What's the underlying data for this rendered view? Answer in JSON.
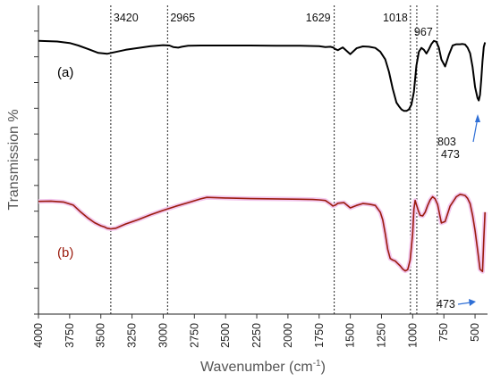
{
  "chart_data": {
    "type": "line",
    "xlabel": "Wavenumber (cm",
    "xlabel_sup": "-1",
    "xlabel_close": ")",
    "ylabel": "Transmission %",
    "xlim": [
      4000,
      400
    ],
    "x_reversed": true,
    "x_ticks": [
      4000,
      3750,
      3500,
      3250,
      3000,
      2750,
      2500,
      2250,
      2000,
      1750,
      1500,
      1250,
      1000,
      750,
      500
    ],
    "y_axis_values_shown": false,
    "ylim": [
      0,
      100
    ],
    "reference_lines": [
      {
        "label": "3420",
        "x": 3420
      },
      {
        "label": "2965",
        "x": 2965
      },
      {
        "label": "1629",
        "x": 1629
      },
      {
        "label": "1018",
        "x": 1018
      },
      {
        "label": "967",
        "x": 967
      },
      {
        "label": "803",
        "x": 803
      }
    ],
    "series": [
      {
        "name": "(a)",
        "color": "#000000",
        "x": [
          4000,
          3850,
          3750,
          3680,
          3600,
          3520,
          3450,
          3380,
          3300,
          3200,
          3100,
          3000,
          2950,
          2920,
          2880,
          2850,
          2800,
          2700,
          2500,
          2300,
          2100,
          1900,
          1750,
          1700,
          1660,
          1640,
          1620,
          1600,
          1560,
          1500,
          1450,
          1400,
          1350,
          1300,
          1260,
          1220,
          1190,
          1160,
          1130,
          1110,
          1090,
          1070,
          1050,
          1030,
          1010,
          990,
          970,
          950,
          930,
          910,
          890,
          870,
          850,
          830,
          810,
          790,
          770,
          740,
          710,
          680,
          650,
          620,
          600,
          580,
          560,
          540,
          520,
          500,
          480,
          470,
          460,
          450,
          440,
          430,
          420
        ],
        "y": [
          88.5,
          88.3,
          87.8,
          87.0,
          85.8,
          84.6,
          84.3,
          84.9,
          85.6,
          86.2,
          86.8,
          87.1,
          87.0,
          86.5,
          86.3,
          86.6,
          86.9,
          87.0,
          87.0,
          87.0,
          86.9,
          86.9,
          86.8,
          86.5,
          86.6,
          86.4,
          85.8,
          85.5,
          86.4,
          84.2,
          86.1,
          86.7,
          86.6,
          86.2,
          85.0,
          82.5,
          78.5,
          73.0,
          68.5,
          67.3,
          66.3,
          65.8,
          65.8,
          66.3,
          67.8,
          72.0,
          80.5,
          85.0,
          86.2,
          85.6,
          84.4,
          85.8,
          87.5,
          88.5,
          88.2,
          86.3,
          82.5,
          80.2,
          84.0,
          87.0,
          87.4,
          87.4,
          87.5,
          87.3,
          86.3,
          84.5,
          80.0,
          73.5,
          70.0,
          69.2,
          71.0,
          76.0,
          82.0,
          86.5,
          88.0
        ]
      },
      {
        "name": "(b)",
        "color": "#9b1c0e",
        "x": [
          4000,
          3900,
          3800,
          3720,
          3660,
          3600,
          3550,
          3500,
          3470,
          3450,
          3420,
          3380,
          3340,
          3300,
          3200,
          3100,
          3000,
          2900,
          2800,
          2700,
          2650,
          2500,
          2300,
          2100,
          1900,
          1800,
          1750,
          1700,
          1660,
          1640,
          1620,
          1600,
          1550,
          1500,
          1450,
          1400,
          1350,
          1300,
          1260,
          1240,
          1220,
          1200,
          1180,
          1160,
          1140,
          1120,
          1100,
          1080,
          1060,
          1040,
          1020,
          1000,
          990,
          980,
          970,
          955,
          940,
          920,
          900,
          880,
          860,
          840,
          820,
          800,
          790,
          770,
          740,
          700,
          650,
          620,
          600,
          580,
          560,
          540,
          520,
          500,
          480,
          460,
          440,
          430,
          420
        ],
        "y": [
          36.5,
          36.6,
          36.3,
          35.3,
          33.0,
          31.0,
          29.6,
          28.6,
          28.2,
          27.8,
          27.6,
          27.8,
          28.5,
          29.2,
          30.6,
          32.2,
          33.6,
          34.9,
          36.1,
          37.3,
          37.8,
          37.6,
          37.4,
          37.3,
          37.2,
          37.1,
          37.0,
          36.8,
          35.7,
          35.0,
          35.3,
          35.9,
          36.1,
          34.4,
          35.2,
          35.8,
          35.6,
          35.2,
          33.0,
          30.5,
          26.0,
          21.0,
          18.0,
          17.5,
          17.2,
          16.4,
          15.6,
          14.6,
          14.0,
          14.4,
          17.5,
          26.0,
          34.0,
          36.8,
          35.5,
          33.5,
          32.0,
          31.8,
          33.0,
          35.2,
          37.0,
          38.0,
          37.3,
          35.5,
          33.5,
          29.5,
          30.0,
          35.0,
          38.0,
          38.8,
          38.6,
          38.4,
          37.5,
          35.8,
          32.0,
          27.0,
          21.0,
          14.5,
          13.8,
          24.0,
          33.0
        ]
      }
    ],
    "annotations": [
      {
        "text": "473",
        "x": 473,
        "series": "(a)"
      },
      {
        "text": "473",
        "x": 473,
        "series": "(b)"
      },
      {
        "text": "803",
        "x": 803
      }
    ],
    "grid": false,
    "legend": "none"
  }
}
